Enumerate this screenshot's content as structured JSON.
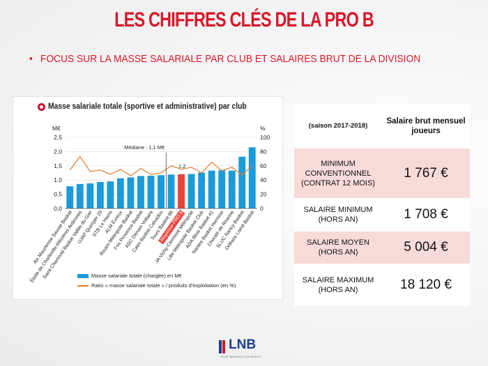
{
  "colors": {
    "title_red": "#d7182a",
    "bar_blue": "#1b9bd8",
    "bar_highlight_red": "#e8433d",
    "line_orange": "#e07c2a",
    "table_pink": "#f7dbd8",
    "logo_blue": "#1d3c8f",
    "logo_red": "#d7182a"
  },
  "title": "LES CHIFFRES CLÉS DE LA PRO B",
  "subtitle": {
    "bullet": "•",
    "text": "FOCUS SUR LA MASSE SALARIALE PAR CLUB ET SALAIRES BRUT DE LA DIVISION"
  },
  "chart_data": {
    "type": "bar",
    "title": "Masse salariale totale (sportive et administrative) par club",
    "left_axis": {
      "unit": "M€",
      "min": 0,
      "max": 2.5,
      "ticks": [
        "0,0",
        "0,5",
        "1,0",
        "1,5",
        "2,0",
        "2,5"
      ]
    },
    "right_axis": {
      "unit": "%",
      "min": 0,
      "max": 100,
      "ticks": [
        "0",
        "20",
        "40",
        "60",
        "80",
        "100"
      ]
    },
    "categories": [
      "Aix Maurienne Savoie Basket",
      "Étoile de Charleville-Mézières Ardennes",
      "Saint-Chamond Basket Vallée du Gier",
      "UJAP Quimper 29",
      "STB Le Havre",
      "ALM Évreux",
      "Rouen Métropole Basket",
      "Fos Provence Basket",
      "ASC Denain Voltaire",
      "Caen Basket Calvados",
      "Tours Basket 86",
      "Moyenne PRO B",
      "JA Vichy-Clermont Métropole",
      "Lille Métropole Basket Club",
      "ADA Blois Basket 41",
      "Nantes Basket Hermine",
      "Chorale de Roanne",
      "SLUC Nancy Basket",
      "Orléans Loiret Basket"
    ],
    "highlight_category": "Moyenne PRO B",
    "series": [
      {
        "name": "Masse salariale totale (chargée) en M€",
        "type": "bar",
        "axis": "left",
        "values": [
          0.78,
          0.86,
          0.88,
          0.93,
          0.95,
          1.06,
          1.09,
          1.14,
          1.15,
          1.17,
          1.19,
          1.2,
          1.21,
          1.26,
          1.33,
          1.34,
          1.33,
          1.82,
          2.15
        ]
      },
      {
        "name": "Ratio « masse salariale totale » / produits d'exploitation (en %)",
        "type": "line",
        "axis": "right",
        "values": [
          54,
          73,
          52,
          54,
          48,
          55,
          46,
          56,
          48,
          50,
          60,
          55,
          58,
          50,
          65,
          53,
          58,
          47,
          60
        ]
      }
    ],
    "annotations": {
      "median_label": "Médiane : 1,1 M€",
      "average_value_label": "1,2"
    },
    "legend_placement": "bottom"
  },
  "table": {
    "header": {
      "label": "(saison 2017-2018)",
      "value": "Salaire brut mensuel joueurs"
    },
    "rows": [
      {
        "label": "MINIMUM CONVENTIONNEL (CONTRAT 12 MOIS)",
        "value": "1 767 €"
      },
      {
        "label": "SALAIRE MINIMUM (HORS AN)",
        "value": "1 708 €"
      },
      {
        "label": "SALAIRE MOYEN (HORS AN)",
        "value": "5 004 €"
      },
      {
        "label": "SALAIRE MAXIMUM (HORS AN)",
        "value": "18 120 €"
      }
    ]
  },
  "logo": {
    "text": "LNB",
    "subtext": "LIGUE NATIONALE DE BASKET"
  }
}
